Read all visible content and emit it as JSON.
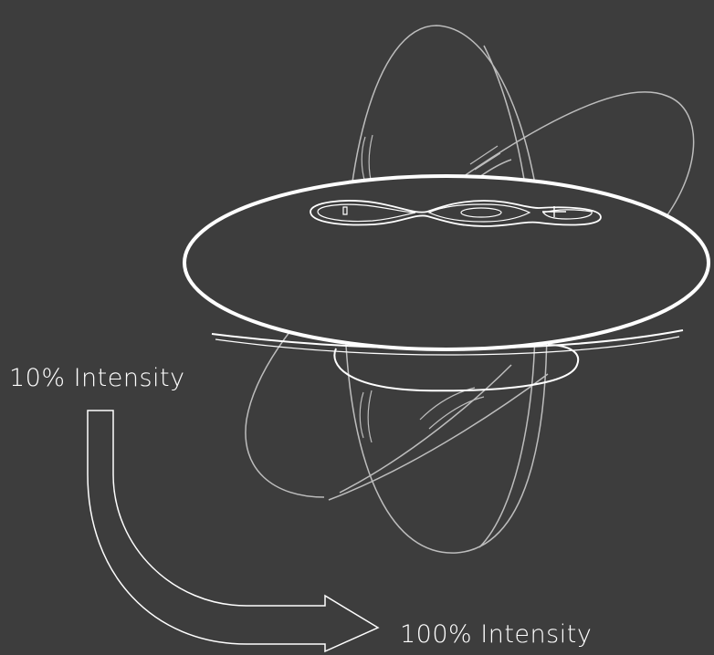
{
  "diagram": {
    "label_min": "10% Intensity",
    "label_max": "100% Intensity"
  },
  "colors": {
    "background": "#3d3d3d",
    "outline_main": "#ffffff",
    "outline_ghost": "#bdbdbd"
  }
}
